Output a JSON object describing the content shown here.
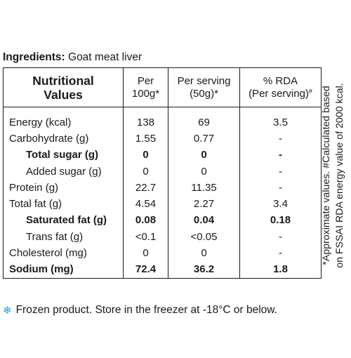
{
  "ingredients": {
    "label": "Ingredients:",
    "value": " Goat meat liver"
  },
  "table": {
    "headers": {
      "col1": [
        "Nutritional",
        "Values"
      ],
      "col2": [
        "Per",
        "100g*"
      ],
      "col3": [
        "Per serving",
        "(50g)*"
      ],
      "col4_line1": "% RDA",
      "col4_line2": "(Per serving)",
      "col4_sup": "#"
    },
    "rows": [
      {
        "label": "Energy (kcal)",
        "per100": "138",
        "serving": "69",
        "rda": "3.5"
      },
      {
        "label": "Carbohydrate (g)",
        "per100": "1.55",
        "serving": "0.77",
        "rda": "-"
      },
      {
        "label": "Total sugar (g)",
        "per100": "0",
        "serving": "0",
        "rda": "-"
      },
      {
        "label": "Added sugar (g)",
        "per100": "0",
        "serving": "0",
        "rda": "-"
      },
      {
        "label": "Protein (g)",
        "per100": "22.7",
        "serving": "11.35",
        "rda": "-"
      },
      {
        "label": "Total fat (g)",
        "per100": "4.54",
        "serving": "2.27",
        "rda": "3.4"
      },
      {
        "label": "Saturated fat (g)",
        "per100": "0.08",
        "serving": "0.04",
        "rda": "0.18"
      },
      {
        "label": "Trans fat (g)",
        "per100": "<0.1",
        "serving": "<0.05",
        "rda": "-"
      },
      {
        "label": "Cholesterol (mg)",
        "per100": "0",
        "serving": "0",
        "rda": "-"
      },
      {
        "label": "Sodium (mg)",
        "per100": "72.4",
        "serving": "36.2",
        "rda": "1.8"
      }
    ]
  },
  "side_note": {
    "line1": "*Approximate values. #Calculated based",
    "line2": "on FSSAI RDA energy value of 2000 kcal."
  },
  "footer": {
    "icon": "snowflake-icon",
    "icon_color": "#2a9fd8",
    "text": "Frozen product. Store in the freezer at -18°C or below."
  }
}
